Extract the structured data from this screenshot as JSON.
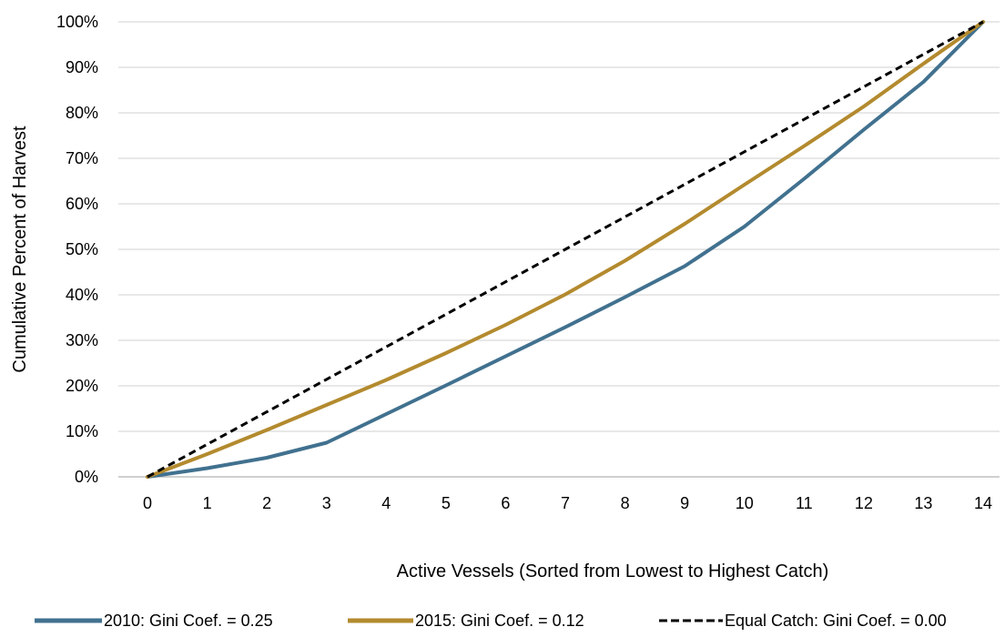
{
  "chart_data": {
    "type": "line",
    "title": "",
    "xlabel": "Active Vessels (Sorted from Lowest to Highest Catch)",
    "ylabel": "Cumulative Percent of Harvest",
    "x": [
      0,
      1,
      2,
      3,
      4,
      5,
      6,
      7,
      8,
      9,
      10,
      11,
      12,
      13,
      14
    ],
    "xlim": [
      0,
      14
    ],
    "ylim": [
      0,
      100
    ],
    "y_ticks": [
      0,
      10,
      20,
      30,
      40,
      50,
      60,
      70,
      80,
      90,
      100
    ],
    "y_tick_labels": [
      "0%",
      "10%",
      "20%",
      "30%",
      "40%",
      "50%",
      "60%",
      "70%",
      "80%",
      "90%",
      "100%"
    ],
    "x_tick_labels": [
      "0",
      "1",
      "2",
      "3",
      "4",
      "5",
      "6",
      "7",
      "8",
      "9",
      "10",
      "11",
      "12",
      "13",
      "14"
    ],
    "grid": "horizontal",
    "legend_position": "bottom",
    "series": [
      {
        "name": "2010:  Gini Coef. = 0.25",
        "color": "#41718F",
        "style": "solid",
        "values": [
          0,
          1.9,
          4.2,
          7.5,
          13.8,
          20.1,
          26.5,
          32.9,
          39.5,
          46.3,
          55.0,
          65.5,
          76.3,
          86.8,
          100
        ]
      },
      {
        "name": "2015:  Gini Coef. = 0.12",
        "color": "#B38A2E",
        "style": "solid",
        "values": [
          0,
          5.0,
          10.3,
          15.8,
          21.3,
          27.2,
          33.4,
          40.1,
          47.5,
          55.6,
          64.2,
          72.7,
          81.4,
          90.8,
          100
        ]
      },
      {
        "name": "Equal Catch:  Gini Coef. = 0.00",
        "color": "#000000",
        "style": "dashed",
        "values": [
          0,
          7.14,
          14.29,
          21.43,
          28.57,
          35.71,
          42.86,
          50.0,
          57.14,
          64.29,
          71.43,
          78.57,
          85.71,
          92.86,
          100
        ]
      }
    ]
  }
}
